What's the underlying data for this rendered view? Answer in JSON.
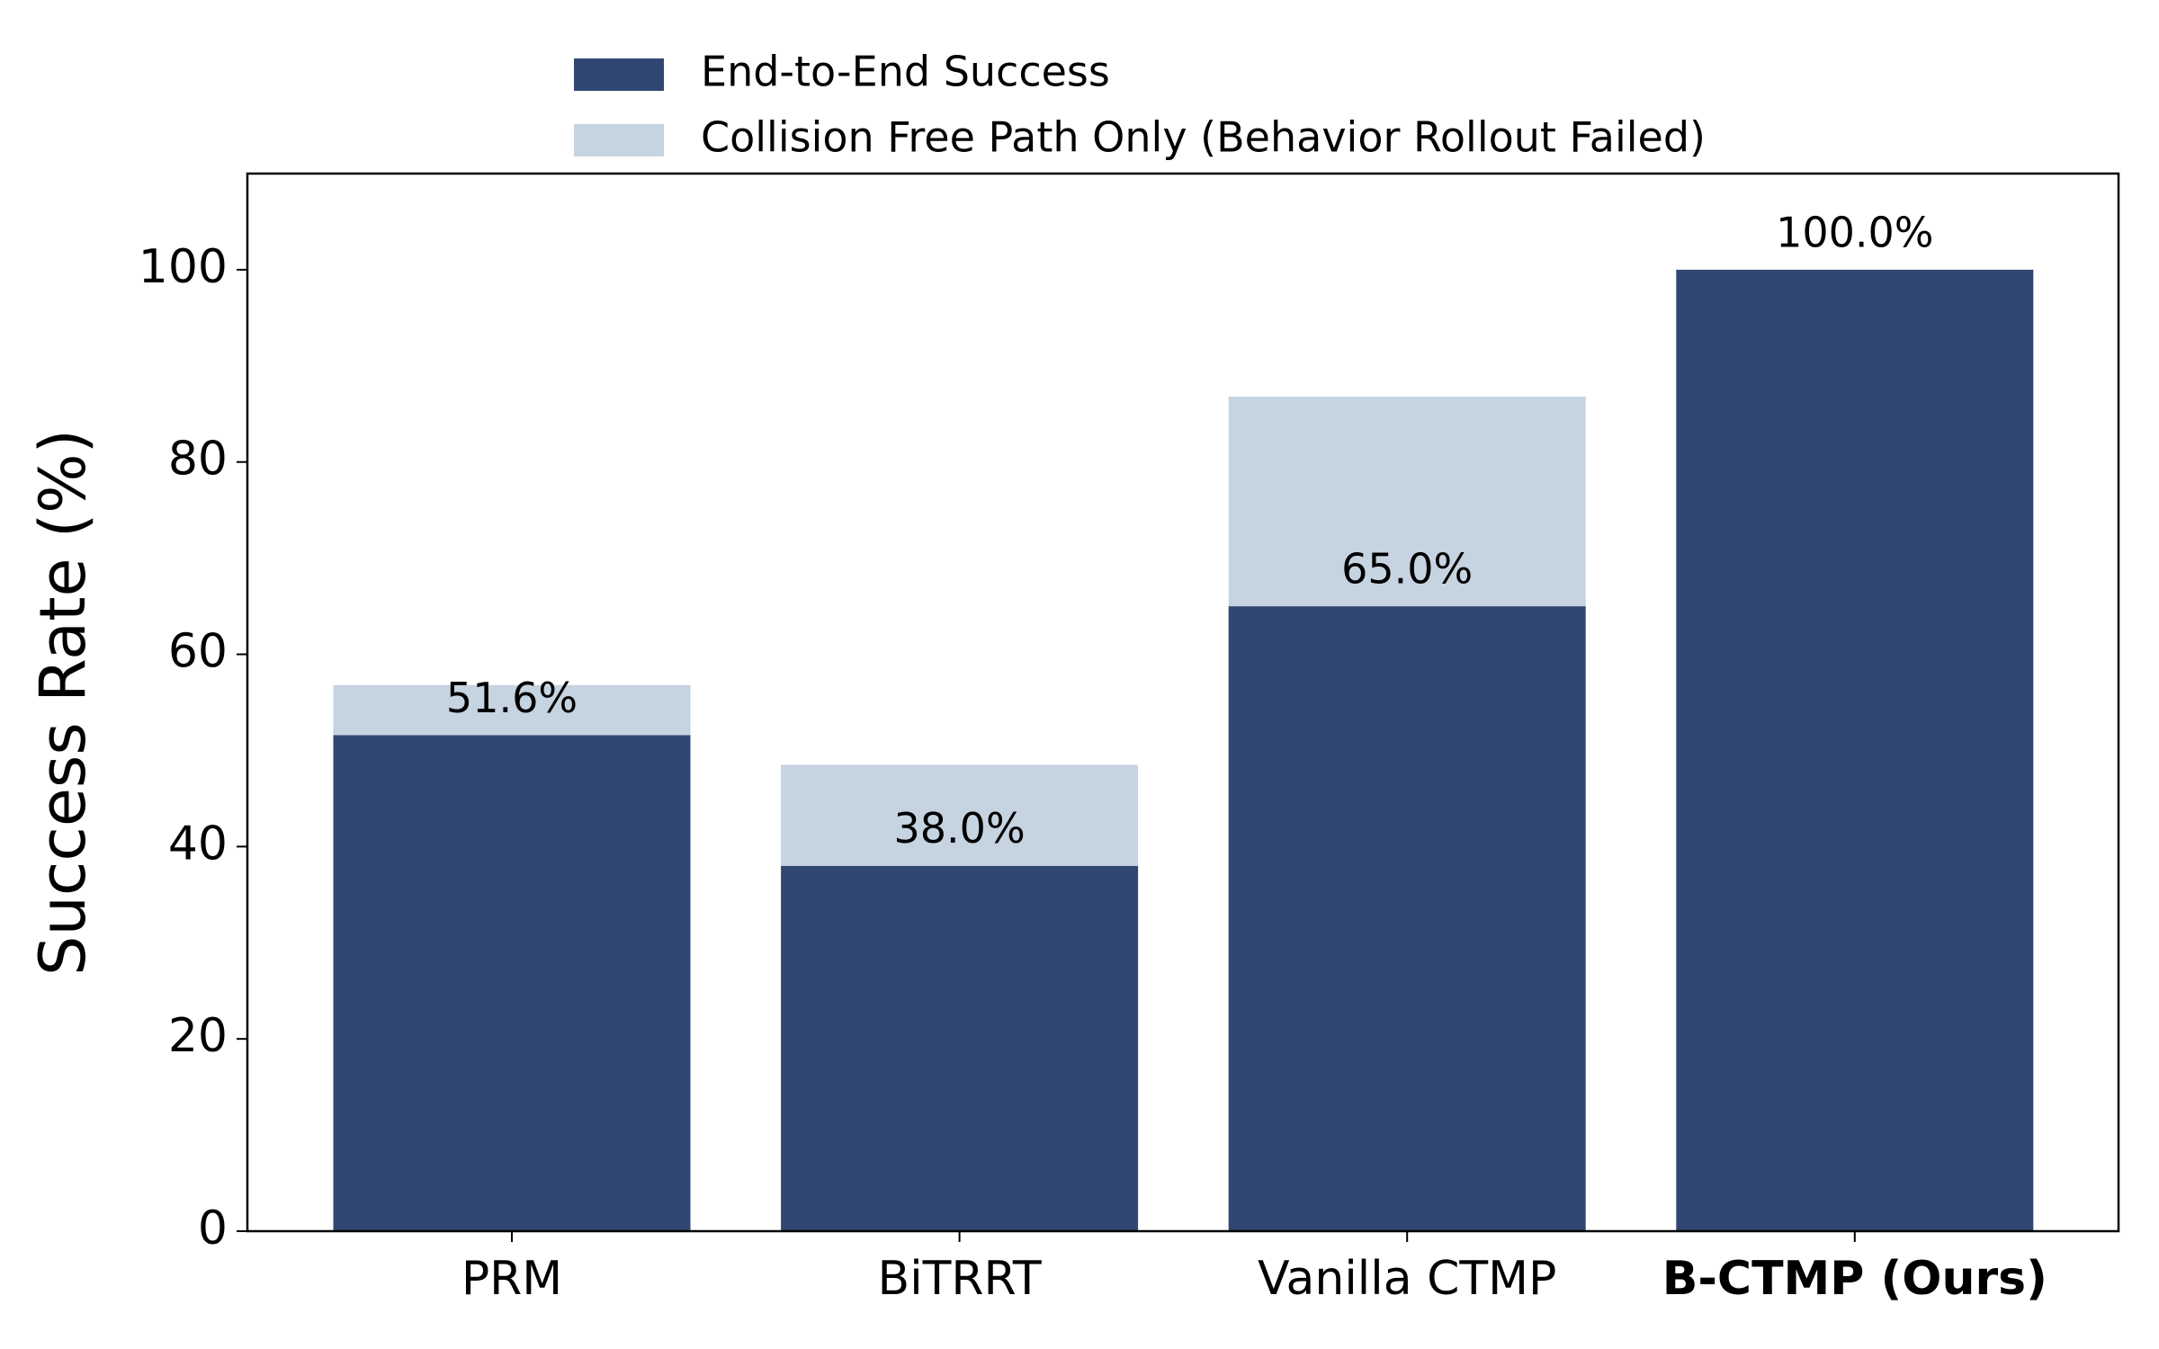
{
  "chart_data": {
    "type": "stacked_bar",
    "categories": [
      "PRM",
      "BiTRRT",
      "Vanilla CTMP",
      "B-CTMP (Ours)"
    ],
    "series": [
      {
        "name": "End-to-End Success",
        "color": "#314773",
        "values": [
          51.6,
          38.0,
          65.0,
          100.0
        ],
        "value_labels": [
          "51.6%",
          "38.0%",
          "65.0%",
          "100.0%"
        ]
      },
      {
        "name": "Collision Free Path Only (Behavior Rollout Failed)",
        "color": "#c6d3e1",
        "values": [
          5.2,
          10.5,
          21.8,
          0
        ]
      }
    ],
    "y_label": "Success Rate (%)",
    "ylim": [
      0,
      110
    ],
    "yticks": [
      0,
      20,
      40,
      60,
      80,
      100
    ]
  }
}
